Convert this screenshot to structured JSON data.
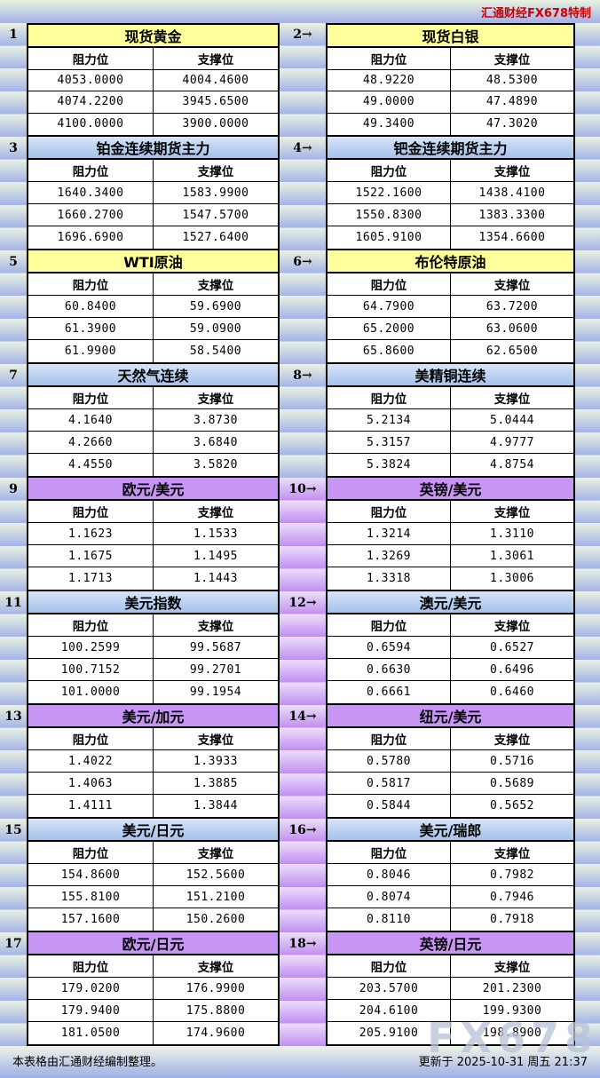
{
  "header": {
    "brand": "汇通财经FX678特制"
  },
  "columns": {
    "resistance": "阻力位",
    "support": "支撑位"
  },
  "footer": {
    "source_note": "本表格由汇通财经编制整理。",
    "updated": "更新于 2025-10-31 周五 21:37",
    "watermark": "FX678"
  },
  "colors": {
    "brand_red": "#cc0000",
    "title_yellow": "#ffff9b",
    "title_blue_top": "#d6e5f8",
    "title_blue_bottom": "#a6c1ea",
    "title_purple": "#c795f3",
    "stripe_green": "#e9f2e0",
    "stripe_blue": "#a5b3e9",
    "stripe_purple_light": "#eddffa",
    "stripe_purple": "#c08ef2",
    "watermark_gray": "rgba(186,195,214,0.78)"
  },
  "panels": [
    {
      "id": "spot-gold",
      "index_label": "1",
      "title": "现货黄金",
      "theme": "yellow",
      "strip": "blue",
      "rows": [
        [
          "4053.0000",
          "4004.4600"
        ],
        [
          "4074.2200",
          "3945.6500"
        ],
        [
          "4100.0000",
          "3900.0000"
        ]
      ]
    },
    {
      "id": "spot-silver",
      "index_label": "2→",
      "title": "现货白银",
      "theme": "yellow",
      "strip": "blue",
      "rows": [
        [
          "48.9220",
          "48.5300"
        ],
        [
          "49.0000",
          "47.4890"
        ],
        [
          "49.3400",
          "47.3020"
        ]
      ]
    },
    {
      "id": "platinum-futures",
      "index_label": "3",
      "title": "铂金连续期货主力",
      "theme": "blue",
      "strip": "blue",
      "rows": [
        [
          "1640.3400",
          "1583.9900"
        ],
        [
          "1660.2700",
          "1547.5700"
        ],
        [
          "1696.6900",
          "1527.6400"
        ]
      ]
    },
    {
      "id": "palladium-futures",
      "index_label": "4→",
      "title": "钯金连续期货主力",
      "theme": "blue",
      "strip": "blue",
      "rows": [
        [
          "1522.1600",
          "1438.4100"
        ],
        [
          "1550.8300",
          "1383.3300"
        ],
        [
          "1605.9100",
          "1354.6600"
        ]
      ]
    },
    {
      "id": "wti-crude",
      "index_label": "5",
      "title": "WTI原油",
      "theme": "yellow",
      "strip": "blue",
      "rows": [
        [
          "60.8400",
          "59.6900"
        ],
        [
          "61.3900",
          "59.0900"
        ],
        [
          "61.9900",
          "58.5400"
        ]
      ]
    },
    {
      "id": "brent-crude",
      "index_label": "6→",
      "title": "布伦特原油",
      "theme": "yellow",
      "strip": "blue",
      "rows": [
        [
          "64.7900",
          "63.7200"
        ],
        [
          "65.2000",
          "63.0600"
        ],
        [
          "65.8600",
          "62.6500"
        ]
      ]
    },
    {
      "id": "natural-gas",
      "index_label": "7",
      "title": "天然气连续",
      "theme": "blue",
      "strip": "blue",
      "rows": [
        [
          "4.1640",
          "3.8730"
        ],
        [
          "4.2660",
          "3.6840"
        ],
        [
          "4.4550",
          "3.5820"
        ]
      ]
    },
    {
      "id": "us-copper",
      "index_label": "8→",
      "title": "美精铜连续",
      "theme": "blue",
      "strip": "blue",
      "rows": [
        [
          "5.2134",
          "5.0444"
        ],
        [
          "5.3157",
          "4.9777"
        ],
        [
          "5.3824",
          "4.8754"
        ]
      ]
    },
    {
      "id": "eur-usd",
      "index_label": "9",
      "title": "欧元/美元",
      "theme": "purple",
      "strip": "purple",
      "rows": [
        [
          "1.1623",
          "1.1533"
        ],
        [
          "1.1675",
          "1.1495"
        ],
        [
          "1.1713",
          "1.1443"
        ]
      ]
    },
    {
      "id": "gbp-usd",
      "index_label": "10→",
      "title": "英镑/美元",
      "theme": "purple",
      "strip": "purple",
      "rows": [
        [
          "1.3214",
          "1.3110"
        ],
        [
          "1.3269",
          "1.3061"
        ],
        [
          "1.3318",
          "1.3006"
        ]
      ]
    },
    {
      "id": "usd-index",
      "index_label": "11",
      "title": "美元指数",
      "theme": "blue",
      "strip": "purple",
      "rows": [
        [
          "100.2599",
          "99.5687"
        ],
        [
          "100.7152",
          "99.2701"
        ],
        [
          "101.0000",
          "99.1954"
        ]
      ]
    },
    {
      "id": "aud-usd",
      "index_label": "12→",
      "title": "澳元/美元",
      "theme": "blue",
      "strip": "purple",
      "rows": [
        [
          "0.6594",
          "0.6527"
        ],
        [
          "0.6630",
          "0.6496"
        ],
        [
          "0.6661",
          "0.6460"
        ]
      ]
    },
    {
      "id": "usd-cad",
      "index_label": "13",
      "title": "美元/加元",
      "theme": "purple",
      "strip": "purple",
      "rows": [
        [
          "1.4022",
          "1.3933"
        ],
        [
          "1.4063",
          "1.3885"
        ],
        [
          "1.4111",
          "1.3844"
        ]
      ]
    },
    {
      "id": "nzd-usd",
      "index_label": "14→",
      "title": "纽元/美元",
      "theme": "purple",
      "strip": "purple",
      "rows": [
        [
          "0.5780",
          "0.5716"
        ],
        [
          "0.5817",
          "0.5689"
        ],
        [
          "0.5844",
          "0.5652"
        ]
      ]
    },
    {
      "id": "usd-jpy",
      "index_label": "15",
      "title": "美元/日元",
      "theme": "blue",
      "strip": "purple",
      "rows": [
        [
          "154.8600",
          "152.5600"
        ],
        [
          "155.8100",
          "151.2100"
        ],
        [
          "157.1600",
          "150.2600"
        ]
      ]
    },
    {
      "id": "usd-chf",
      "index_label": "16→",
      "title": "美元/瑞郎",
      "theme": "blue",
      "strip": "purple",
      "rows": [
        [
          "0.8046",
          "0.7982"
        ],
        [
          "0.8074",
          "0.7946"
        ],
        [
          "0.8110",
          "0.7918"
        ]
      ]
    },
    {
      "id": "eur-jpy",
      "index_label": "17",
      "title": "欧元/日元",
      "theme": "purple",
      "strip": "purple",
      "rows": [
        [
          "179.0200",
          "176.9900"
        ],
        [
          "179.9400",
          "175.8800"
        ],
        [
          "181.0500",
          "174.9600"
        ]
      ]
    },
    {
      "id": "gbp-jpy",
      "index_label": "18→",
      "title": "英镑/日元",
      "theme": "purple",
      "strip": "purple",
      "rows": [
        [
          "203.5700",
          "201.2300"
        ],
        [
          "204.6100",
          "199.9300"
        ],
        [
          "205.9100",
          "198.8900"
        ]
      ]
    }
  ]
}
